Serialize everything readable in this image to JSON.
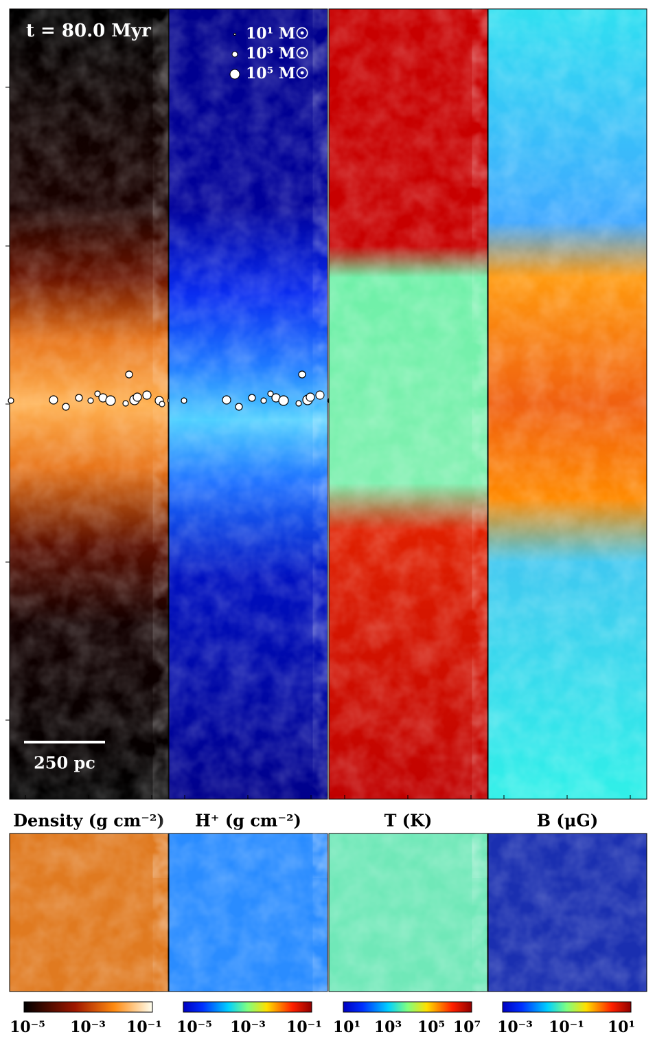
{
  "time_label": "t = 80.0 Myr",
  "legend": [
    "10¹ M☉",
    "10³ M☉",
    "10⁵ M☉"
  ],
  "scale_bar": "250 pc",
  "panels": [
    {
      "title": "Density (g cm⁻²)",
      "colorbar": {
        "ticks": [
          "10⁻⁵",
          "10⁻³",
          "10⁻¹"
        ]
      }
    },
    {
      "title": "H⁺ (g cm⁻²)",
      "colorbar": {
        "ticks": [
          "10⁻⁵",
          "10⁻³",
          "10⁻¹"
        ]
      }
    },
    {
      "title": "T (K)",
      "colorbar": {
        "ticks": [
          "10¹",
          "10³",
          "10⁵",
          "10⁷"
        ]
      }
    },
    {
      "title": "B (μG)",
      "colorbar": {
        "ticks": [
          "10⁻³",
          "10⁻¹",
          "10¹"
        ]
      }
    }
  ]
}
